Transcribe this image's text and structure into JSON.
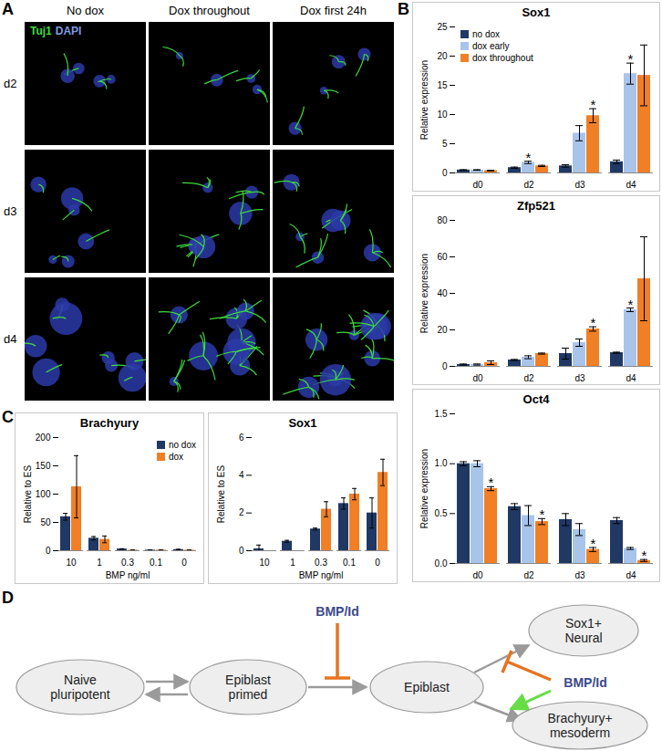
{
  "panel_labels": [
    "A",
    "B",
    "C",
    "D"
  ],
  "panel_a": {
    "stain_labels": [
      {
        "text": "Tuj1",
        "color": "#3ddc3d"
      },
      {
        "text": "DAPI",
        "color": "#7d9be0"
      }
    ],
    "columns": [
      "No dox",
      "Dox throughout",
      "Dox first 24h"
    ],
    "rows": [
      "d2",
      "d3",
      "d4"
    ]
  },
  "chart_data": [
    {
      "type": "bar",
      "title": "Sox1",
      "y_label": "Relative expression",
      "categories": [
        "d0",
        "d2",
        "d3",
        "d4"
      ],
      "series": [
        {
          "name": "no dox",
          "color": "#1f3864",
          "values": [
            0.5,
            0.9,
            1.2,
            1.9
          ],
          "errors": [
            0.05,
            0.1,
            0.2,
            0.3
          ]
        },
        {
          "name": "dox early",
          "color": "#a9c4eb",
          "values": [
            0.5,
            1.8,
            6.8,
            17
          ],
          "errors": [
            0.05,
            0.2,
            1.3,
            1.8
          ]
        },
        {
          "name": "dox throughout",
          "color": "#f07f26",
          "values": [
            0.4,
            1.2,
            9.8,
            16.7
          ],
          "errors": [
            0.05,
            0.1,
            1.2,
            5.2
          ]
        }
      ],
      "ylim": [
        0,
        25
      ],
      "yticks": [
        0,
        5,
        10,
        15,
        20,
        25
      ],
      "legend": "top-left",
      "annotations": [
        {
          "category": "d2",
          "series": "dox early",
          "text": "*"
        },
        {
          "category": "d3",
          "series": "dox throughout",
          "text": "*"
        },
        {
          "category": "d4",
          "series": "dox early",
          "text": "*"
        }
      ]
    },
    {
      "type": "bar",
      "title": "Zfp521",
      "y_label": "Relative expression",
      "categories": [
        "d0",
        "d2",
        "d3",
        "d4"
      ],
      "series": [
        {
          "name": "no dox",
          "color": "#1f3864",
          "values": [
            1,
            3.5,
            7,
            7.5
          ],
          "errors": [
            0.3,
            0.3,
            3,
            0.3
          ]
        },
        {
          "name": "dox early",
          "color": "#a9c4eb",
          "values": [
            1,
            5,
            13,
            31
          ],
          "errors": [
            0.3,
            0.8,
            2,
            1
          ]
        },
        {
          "name": "dox throughout",
          "color": "#f07f26",
          "values": [
            2,
            7,
            20.5,
            48
          ],
          "errors": [
            1,
            0.3,
            1.2,
            23
          ]
        }
      ],
      "ylim": [
        0,
        80
      ],
      "yticks": [
        0,
        20,
        40,
        60,
        80
      ],
      "annotations": [
        {
          "category": "d3",
          "series": "dox throughout",
          "text": "*"
        },
        {
          "category": "d4",
          "series": "dox early",
          "text": "*"
        }
      ]
    },
    {
      "type": "bar",
      "title": "Oct4",
      "y_label": "Relative expression",
      "categories": [
        "d0",
        "d2",
        "d3",
        "d4"
      ],
      "series": [
        {
          "name": "no dox",
          "color": "#1f3864",
          "values": [
            1.0,
            0.57,
            0.44,
            0.43
          ],
          "errors": [
            0.02,
            0.03,
            0.06,
            0.03
          ]
        },
        {
          "name": "dox early",
          "color": "#a9c4eb",
          "values": [
            1.0,
            0.48,
            0.34,
            0.15
          ],
          "errors": [
            0.03,
            0.1,
            0.06,
            0.01
          ]
        },
        {
          "name": "dox throughout",
          "color": "#f07f26",
          "values": [
            0.75,
            0.42,
            0.14,
            0.03
          ],
          "errors": [
            0.02,
            0.03,
            0.02,
            0.01
          ]
        }
      ],
      "ylim": [
        0,
        1.5
      ],
      "yticks": [
        {
          "value": 0,
          "label": "0.0"
        },
        {
          "value": 0.5,
          "label": "0.5"
        },
        {
          "value": 1,
          "label": "1.0"
        },
        {
          "value": 1.5,
          "label": "1.5"
        }
      ],
      "annotations": [
        {
          "category": "d0",
          "series": "dox throughout",
          "text": "*"
        },
        {
          "category": "d2",
          "series": "dox throughout",
          "text": "*"
        },
        {
          "category": "d3",
          "series": "dox throughout",
          "text": "*"
        },
        {
          "category": "d4",
          "series": "dox throughout",
          "text": "*"
        }
      ]
    },
    {
      "type": "bar",
      "title": "Brachyury",
      "y_label": "Relative to ES",
      "x_label": "BMP ng/ml",
      "categories": [
        "10",
        "1",
        "0.3",
        "0.1",
        "0"
      ],
      "series": [
        {
          "name": "no dox",
          "color": "#1f3864",
          "values": [
            60,
            22,
            3,
            1,
            2
          ],
          "errors": [
            6,
            3,
            0.5,
            0.3,
            0.5
          ]
        },
        {
          "name": "dox",
          "color": "#f07f26",
          "values": [
            113,
            20,
            1,
            1,
            1
          ],
          "errors": [
            55,
            6,
            0.3,
            0.3,
            0.3
          ]
        }
      ],
      "ylim": [
        0,
        200
      ],
      "yticks": [
        0,
        50,
        100,
        150,
        200
      ],
      "legend": "top-right"
    },
    {
      "type": "bar",
      "title": "Sox1",
      "y_label": "Relative to ES",
      "x_label": "BMP ng/ml",
      "categories": [
        "10",
        "1",
        "0.3",
        "0.1",
        "0"
      ],
      "series": [
        {
          "name": "no dox",
          "color": "#1f3864",
          "values": [
            0.1,
            0.5,
            1.15,
            2.5,
            2.0
          ],
          "errors": [
            0.2,
            0.05,
            0.05,
            0.3,
            0.8
          ]
        },
        {
          "name": "dox",
          "color": "#f07f26",
          "values": [
            0,
            0,
            2.2,
            3.0,
            4.15
          ],
          "errors": [
            0,
            0,
            0.4,
            0.3,
            0.7
          ]
        }
      ],
      "ylim": [
        0,
        6
      ],
      "yticks": [
        0,
        2,
        4,
        6
      ]
    }
  ],
  "diagram": {
    "nodes": [
      {
        "label": [
          "Naive",
          "pluripotent"
        ]
      },
      {
        "label": [
          "Epiblast",
          "primed"
        ]
      },
      {
        "label": [
          "Epiblast"
        ]
      },
      {
        "label": [
          "Sox1+",
          "Neural"
        ]
      },
      {
        "label": [
          "Brachyury+",
          "mesoderm"
        ]
      }
    ],
    "regulators": [
      {
        "label": "BMP/Id",
        "color": "#e8731f"
      },
      {
        "label": "BMP/Id",
        "color": "#e8731f"
      }
    ]
  }
}
